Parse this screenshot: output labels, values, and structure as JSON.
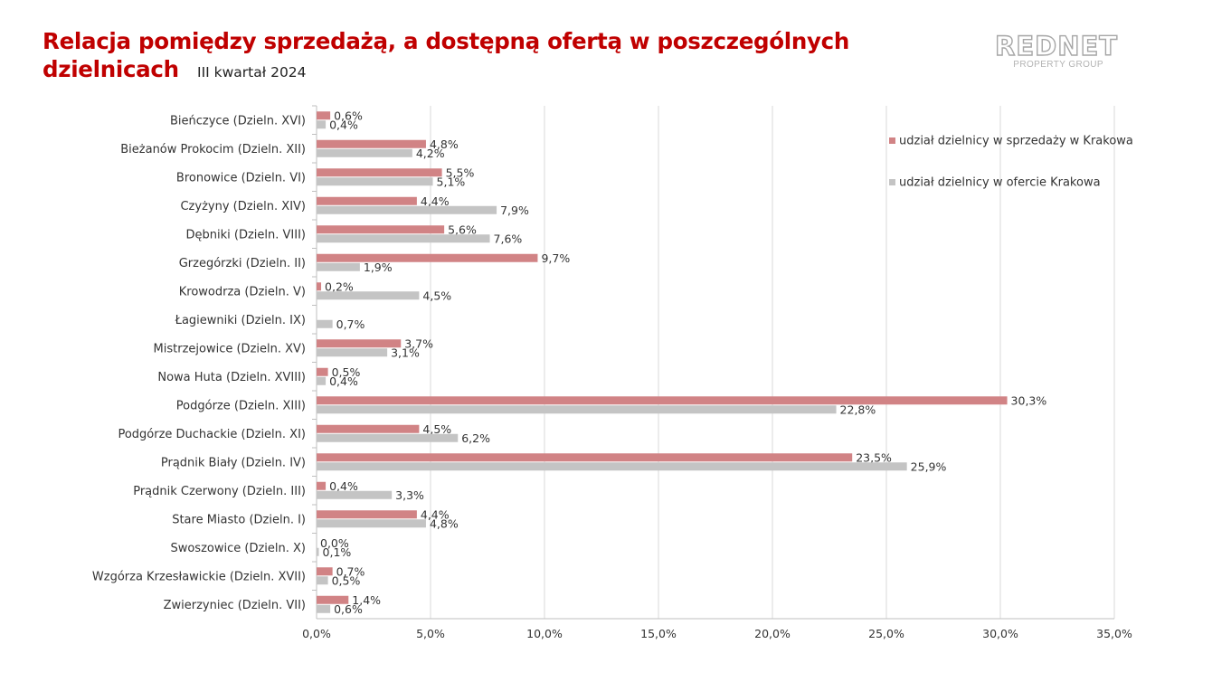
{
  "header": {
    "title_line1": "Relacja pomiędzy sprzedażą, a dostępną ofertą w poszczególnych",
    "title_line2": "dzielnicach",
    "subtitle": "III kwartał 2024"
  },
  "logo": {
    "name": "REDNET",
    "tagline": "PROPERTY GROUP"
  },
  "colors": {
    "title": "#c00000",
    "sales": "#d18385",
    "offer": "#c4c4c4",
    "grid": "#d9d9d9",
    "axis": "#bfbfbf",
    "text": "#333333"
  },
  "chart_data": {
    "type": "bar",
    "orientation": "horizontal",
    "categories": [
      "Bieńczyce (Dzieln. XVI)",
      "Bieżanów Prokocim (Dzieln. XII)",
      "Bronowice (Dzieln. VI)",
      "Czyżyny (Dzieln. XIV)",
      "Dębniki (Dzieln. VIII)",
      "Grzegórzki (Dzieln. II)",
      "Krowodrza (Dzieln. V)",
      "Łagiewniki (Dzieln. IX)",
      "Mistrzejowice (Dzieln. XV)",
      "Nowa Huta (Dzieln. XVIII)",
      "Podgórze (Dzieln. XIII)",
      "Podgórze Duchackie (Dzieln. XI)",
      "Prądnik Biały (Dzieln. IV)",
      "Prądnik Czerwony (Dzieln. III)",
      "Stare Miasto (Dzieln. I)",
      "Swoszowice (Dzieln. X)",
      "Wzgórza Krzesławickie (Dzieln. XVII)",
      "Zwierzyniec (Dzieln. VII)"
    ],
    "series": [
      {
        "name": "udział dzielnicy w sprzedaży w Krakowa",
        "values": [
          0.6,
          4.8,
          5.5,
          4.4,
          5.6,
          9.7,
          0.2,
          null,
          3.7,
          0.5,
          30.3,
          4.5,
          23.5,
          0.4,
          4.4,
          0.0,
          0.7,
          1.4
        ],
        "labels": [
          "0,6%",
          "4,8%",
          "5,5%",
          "4,4%",
          "5,6%",
          "9,7%",
          "0,2%",
          "",
          "3,7%",
          "0,5%",
          "30,3%",
          "4,5%",
          "23,5%",
          "0,4%",
          "4,4%",
          "0,0%",
          "0,7%",
          "1,4%"
        ]
      },
      {
        "name": "udział dzielnicy w ofercie Krakowa",
        "values": [
          0.4,
          4.2,
          5.1,
          7.9,
          7.6,
          1.9,
          4.5,
          0.7,
          3.1,
          0.4,
          22.8,
          6.2,
          25.9,
          3.3,
          4.8,
          0.1,
          0.5,
          0.6
        ],
        "labels": [
          "0,4%",
          "4,2%",
          "5,1%",
          "7,9%",
          "7,6%",
          "1,9%",
          "4,5%",
          "0,7%",
          "3,1%",
          "0,4%",
          "22,8%",
          "6,2%",
          "25,9%",
          "3,3%",
          "4,8%",
          "0,1%",
          "0,5%",
          "0,6%"
        ]
      }
    ],
    "xlim": [
      0,
      35
    ],
    "xticks": [
      0,
      5,
      10,
      15,
      20,
      25,
      30,
      35
    ],
    "xtick_labels": [
      "0,0%",
      "5,0%",
      "10,0%",
      "15,0%",
      "20,0%",
      "25,0%",
      "30,0%",
      "35,0%"
    ],
    "grid": "vertical",
    "legend_position": "top-right"
  }
}
